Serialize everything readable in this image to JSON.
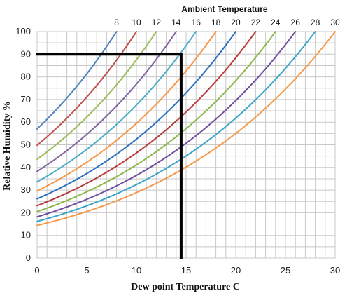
{
  "chart_data": {
    "type": "line",
    "title": "Ambient Temperature",
    "xlabel": "Dew point Temperature C",
    "ylabel": "Relative Humidity %",
    "xlim": [
      0,
      30
    ],
    "ylim": [
      0,
      100
    ],
    "x_ticks": [
      "0",
      "5",
      "10",
      "15",
      "20",
      "25",
      "30"
    ],
    "y_ticks": [
      "0",
      "10",
      "20",
      "30",
      "40",
      "50",
      "60",
      "70",
      "80",
      "90",
      "100"
    ],
    "minor_grid_step": {
      "x": 1,
      "y": 5
    },
    "grid": true,
    "legend": "none",
    "series_label_position": "top",
    "ambient_temperatures": [
      8,
      10,
      12,
      14,
      16,
      18,
      20,
      22,
      24,
      26,
      28,
      30
    ],
    "series": [
      {
        "name": "8",
        "color": "#4f81bd",
        "rh_at_dewpoint_0": 57.0
      },
      {
        "name": "10",
        "color": "#c0504d",
        "rh_at_dewpoint_0": 49.6
      },
      {
        "name": "12",
        "color": "#9bbb59",
        "rh_at_dewpoint_0": 43.7
      },
      {
        "name": "14",
        "color": "#8064a2",
        "rh_at_dewpoint_0": 38.2
      },
      {
        "name": "16",
        "color": "#4bacc6",
        "rh_at_dewpoint_0": 33.6
      },
      {
        "name": "18",
        "color": "#f79646",
        "rh_at_dewpoint_0": 29.6
      },
      {
        "name": "20",
        "color": "#2c6fbd",
        "rh_at_dewpoint_0": 26.1
      },
      {
        "name": "22",
        "color": "#b83b3b",
        "rh_at_dewpoint_0": 23.0
      },
      {
        "name": "24",
        "color": "#8cb84a",
        "rh_at_dewpoint_0": 20.4
      },
      {
        "name": "26",
        "color": "#6f4f9e",
        "rh_at_dewpoint_0": 18.1
      },
      {
        "name": "28",
        "color": "#3aa5c9",
        "rh_at_dewpoint_0": 16.2
      },
      {
        "name": "30",
        "color": "#f39a4c",
        "rh_at_dewpoint_0": 14.6
      }
    ],
    "highlight": {
      "dewpoint": 14.5,
      "relative_humidity": 90,
      "ambient_temperature": 16,
      "color": "#000000"
    }
  }
}
